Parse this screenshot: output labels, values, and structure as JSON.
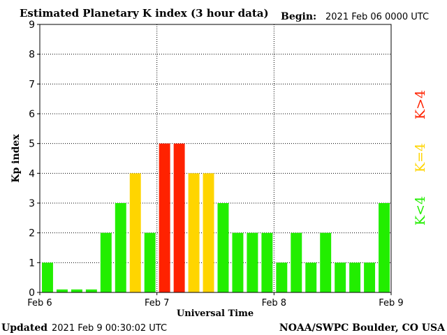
{
  "chart_data": {
    "type": "bar",
    "title": "Estimated Planetary K index (3 hour data)",
    "begin_label": "Begin:",
    "begin_value": "2021 Feb 06 0000 UTC",
    "xlabel": "Universal Time",
    "ylabel": "Kp index",
    "ylim": [
      0,
      9
    ],
    "yticks": [
      "0",
      "1",
      "2",
      "3",
      "4",
      "5",
      "6",
      "7",
      "8",
      "9"
    ],
    "day_labels": [
      "Feb 6",
      "Feb 7",
      "Feb 8",
      "Feb 9"
    ],
    "values": [
      1,
      0.1,
      0.1,
      0.1,
      2,
      3,
      4,
      2,
      5,
      5,
      4,
      4,
      3,
      2,
      2,
      2,
      1,
      2,
      1,
      2,
      1,
      1,
      1,
      3
    ],
    "grid": true,
    "legend": [
      {
        "label": "K>4",
        "color": "#ff2200"
      },
      {
        "label": "K=4",
        "color": "#ffd500"
      },
      {
        "label": "K<4",
        "color": "#22ee00"
      }
    ],
    "updated_label": "Updated",
    "updated_value": "2021 Feb  9 00:30:02 UTC",
    "source": "NOAA/SWPC Boulder, CO USA"
  }
}
